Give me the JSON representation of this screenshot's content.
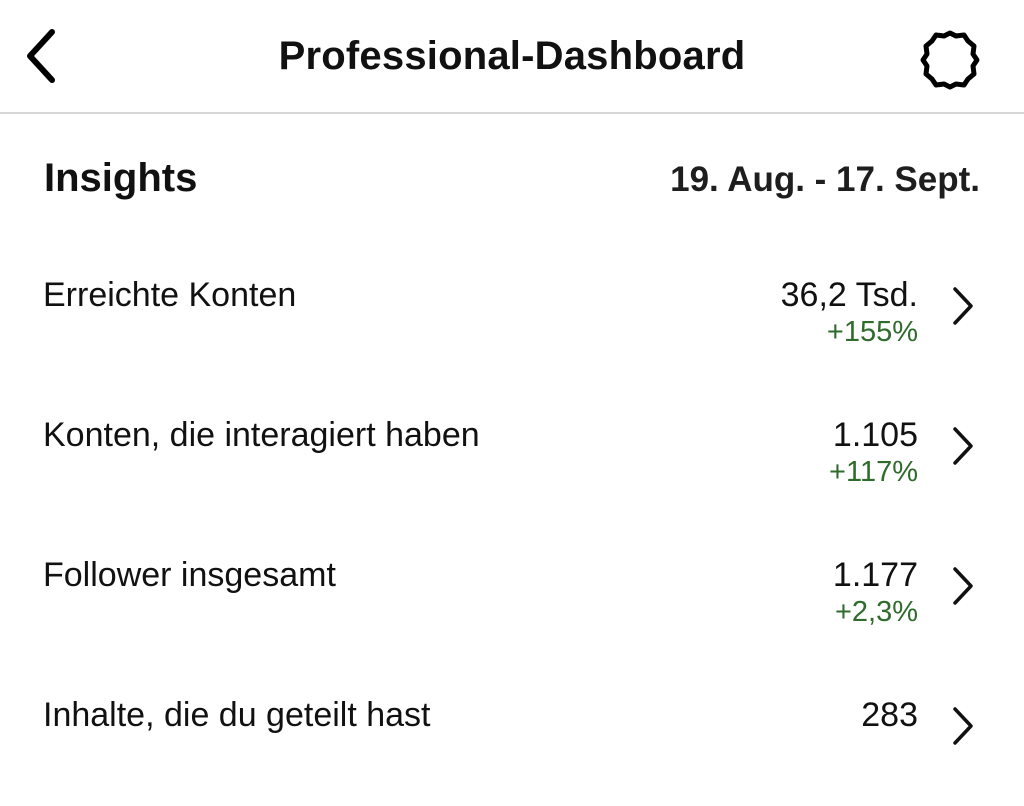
{
  "header": {
    "title": "Professional-Dashboard",
    "back_icon": "chevron-left-icon",
    "settings_icon": "gear-icon"
  },
  "insights": {
    "title": "Insights",
    "date_range": "19. Aug. - 17. Sept."
  },
  "metrics": [
    {
      "label": "Erreichte Konten",
      "value": "36,2 Tsd.",
      "change": "+155%"
    },
    {
      "label": "Konten, die interagiert haben",
      "value": "1.105",
      "change": "+117%"
    },
    {
      "label": "Follower insgesamt",
      "value": "1.177",
      "change": "+2,3%"
    },
    {
      "label": "Inhalte, die du geteilt hast",
      "value": "283",
      "change": ""
    }
  ],
  "colors": {
    "positive_change": "#2f6b2c",
    "divider": "#d6d6d6",
    "text": "#111111"
  }
}
